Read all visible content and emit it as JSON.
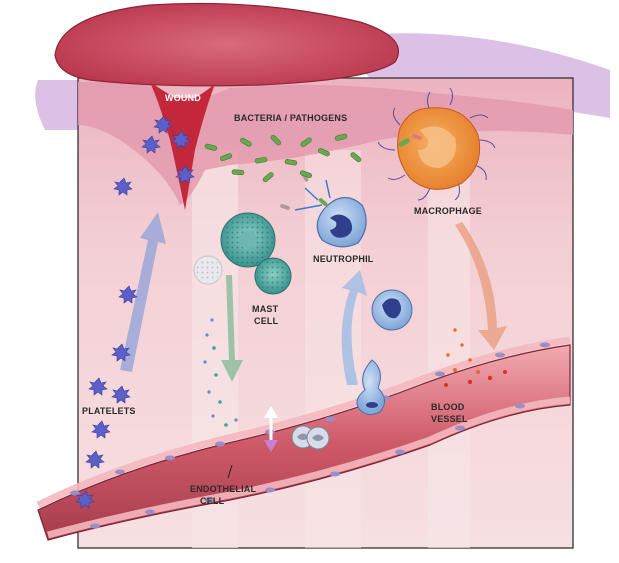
{
  "labels": {
    "wound": "WOUND",
    "bacteria": "BACTERIA / PATHOGENS",
    "macrophage": "MACROPHAGE",
    "neutrophil": "NEUTROPHIL",
    "mast_cell_line1": "MAST",
    "mast_cell_line2": "CELL",
    "platelets": "PLATELETS",
    "blood_vessel_line1": "BLOOD",
    "blood_vessel_line2": "VESSEL",
    "endothelial_line1": "ENDOTHELIAL",
    "endothelial_line2": "CELL"
  },
  "colors": {
    "tissue": "#f2d4d6",
    "skin_top": "#e8a3b6",
    "wound_red": "#c3283a",
    "scab": "#c95468",
    "purple_layer": "#d9b8e4",
    "vessel": "#e07580",
    "vessel_dark": "#b84a5a",
    "bacteria_green": "#6aa84f",
    "platelet_blue": "#5b5fc7",
    "macrophage_orange": "#f0953a",
    "neutrophil_blue": "#8fb4e3",
    "mast_teal": "#3aa59a",
    "arrow_blue": "#9aa7d8",
    "arrow_green": "#8fb89a",
    "arrow_orange": "#e8926c"
  }
}
